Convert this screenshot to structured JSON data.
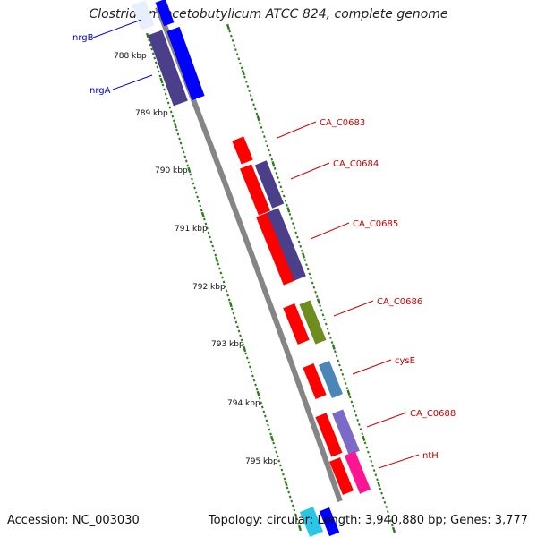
{
  "title": "Clostridium acetobutylicum ATCC 824, complete genome",
  "accession_text": "Accession: NC_003030",
  "topology_text": "Topology: circular; Length: 3,940,880 bp; Genes: 3,777",
  "colors": {
    "backbone": "#888888",
    "tick": "#2e7d1c",
    "red_gene": "#ff0000",
    "forward_label": "#0000cc",
    "reverse_label": "#cc0000",
    "navy": "#4a3f88",
    "blue": "#0000ff",
    "olive": "#6f8c1f",
    "steel": "#4a86b8",
    "lavender": "#7b6ac8",
    "magenta": "#ff1493",
    "cyan": "#29c6e6"
  },
  "kbp_labels": [
    "788 kbp",
    "789 kbp",
    "790 kbp",
    "791 kbp",
    "792 kbp",
    "793 kbp",
    "794 kbp",
    "795 kbp"
  ],
  "genes": [
    {
      "name": "nrgB",
      "side": "left",
      "label_color": "#0000cc"
    },
    {
      "name": "nrgA",
      "side": "left",
      "label_color": "#0000cc"
    },
    {
      "name": "CA_C0683",
      "side": "right",
      "label_color": "#cc0000"
    },
    {
      "name": "CA_C0684",
      "side": "right",
      "label_color": "#cc0000"
    },
    {
      "name": "CA_C0685",
      "side": "right",
      "label_color": "#cc0000"
    },
    {
      "name": "CA_C0686",
      "side": "right",
      "label_color": "#cc0000"
    },
    {
      "name": "cysE",
      "side": "right",
      "label_color": "#cc0000"
    },
    {
      "name": "CA_C0688",
      "side": "right",
      "label_color": "#cc0000"
    },
    {
      "name": "ntH",
      "side": "right",
      "label_color": "#cc0000"
    }
  ]
}
